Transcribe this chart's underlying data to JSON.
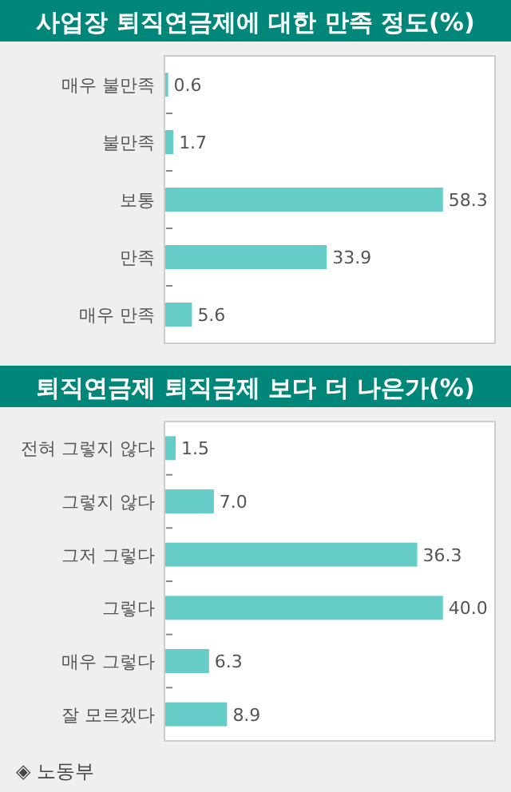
{
  "chart_data": [
    {
      "type": "bar",
      "orientation": "horizontal",
      "title": "사업장 퇴직연금제에 대한 만족 정도(%)",
      "categories": [
        "매우 불만족",
        "불만족",
        "보통",
        "만족",
        "매우 만족"
      ],
      "values": [
        0.6,
        1.7,
        58.3,
        33.9,
        5.6
      ],
      "color": "#66cdc8",
      "data_labels": true
    },
    {
      "type": "bar",
      "orientation": "horizontal",
      "title": "퇴직연금제 퇴직금제 보다 더 나은가(%)",
      "categories": [
        "전혀 그렇지 않다",
        "그렇지 않다",
        "그저 그렇다",
        "그렇다",
        "매우 그렇다",
        "잘 모르겠다"
      ],
      "values": [
        1.5,
        7.0,
        36.3,
        40.0,
        6.3,
        8.9
      ],
      "value_labels": [
        "1.5",
        "7.0",
        "36.3",
        "40.0",
        "6.3",
        "8.9"
      ],
      "color": "#66cdc8",
      "annotations": [
        "◈ 노동부"
      ]
    }
  ]
}
